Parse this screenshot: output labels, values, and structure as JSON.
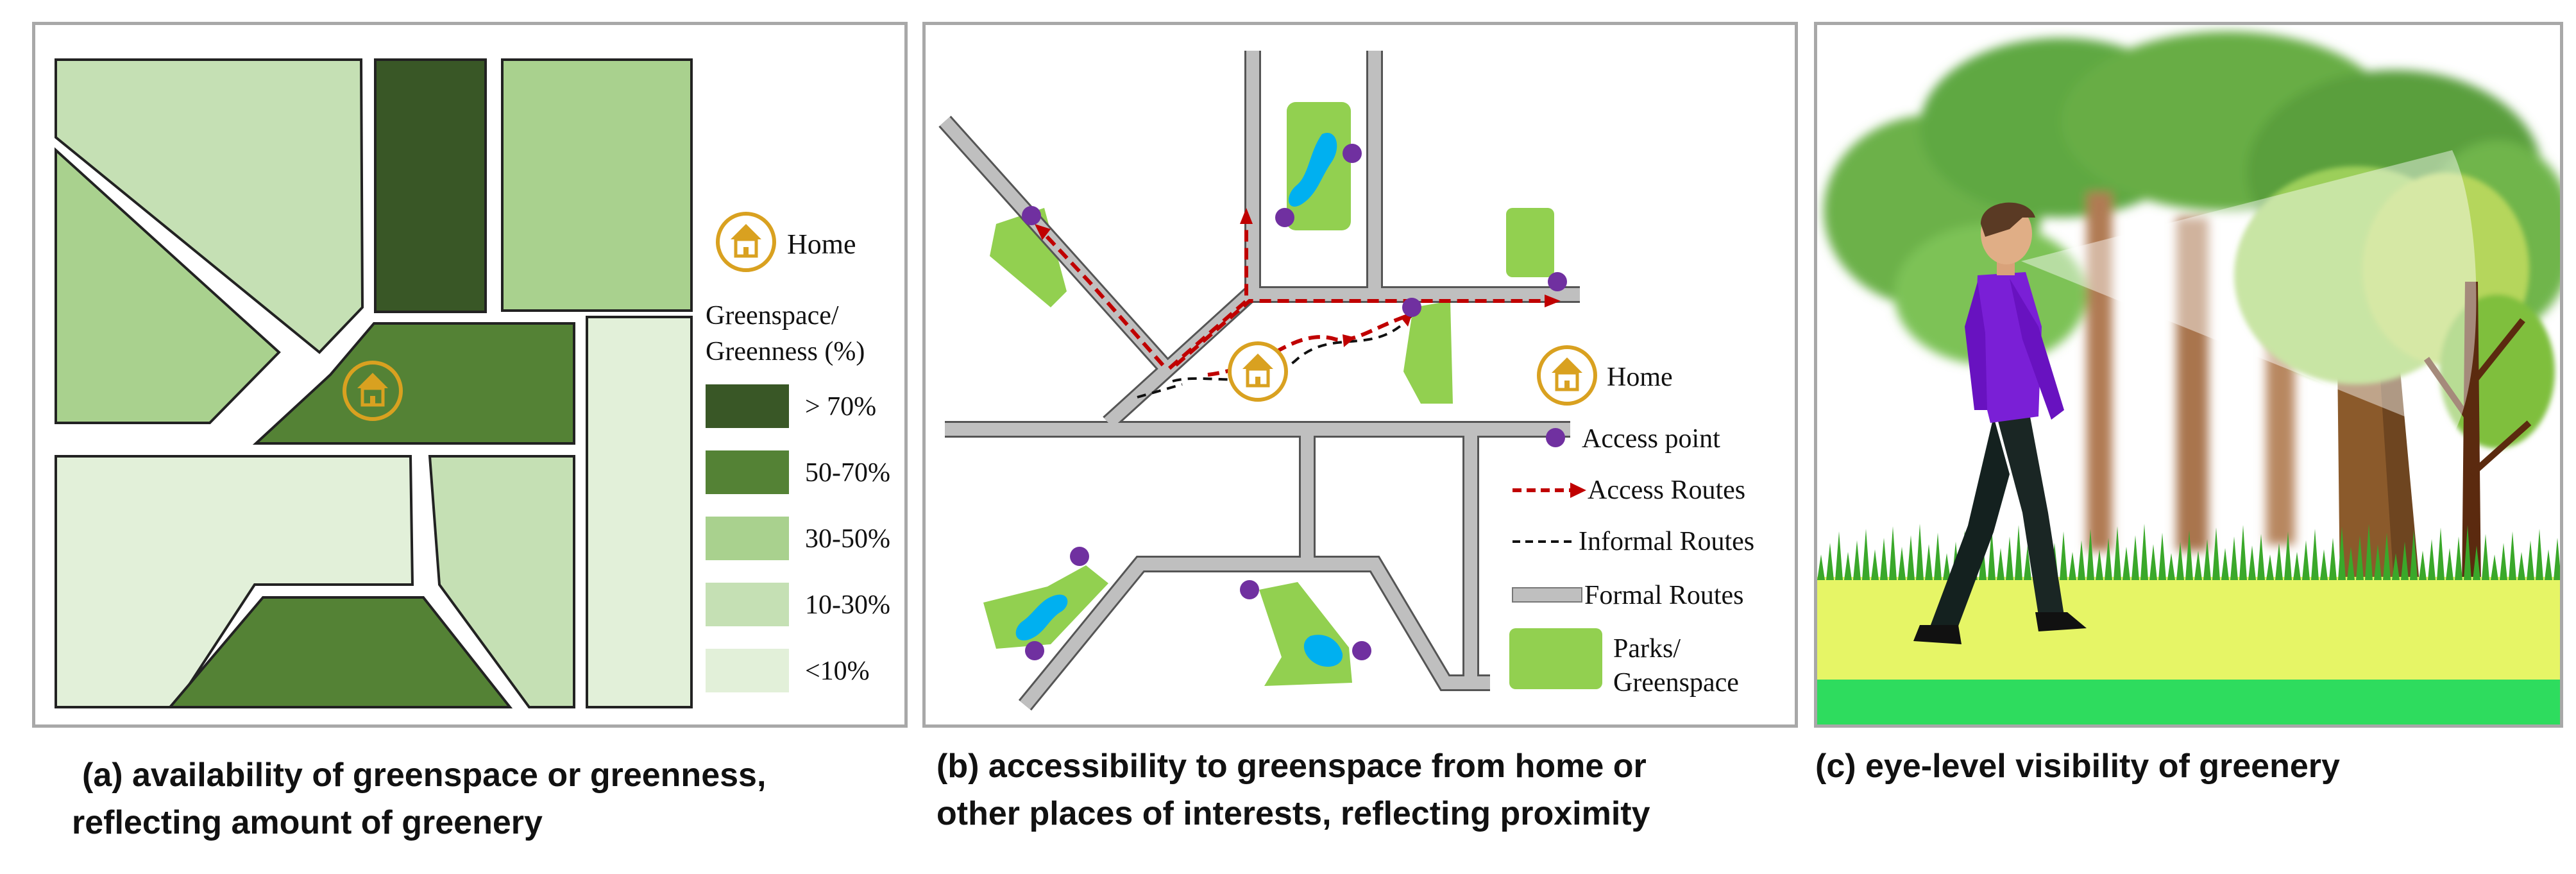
{
  "panel_a": {
    "legend": {
      "home_label": "Home",
      "title_line1": "Greenspace/",
      "title_line2": "Greenness (%)",
      "classes": [
        {
          "label": "> 70%",
          "color": "#395726"
        },
        {
          "label": "50-70%",
          "color": "#548235"
        },
        {
          "label": "30-50%",
          "color": "#a9d18e"
        },
        {
          "label": "10-30%",
          "color": "#c5e0b4"
        },
        {
          "label": "<10%",
          "color": "#e2f0d9"
        }
      ]
    },
    "caption_line1": "(a) availability of greenspace or greenness,",
    "caption_line2": "reflecting amount of greenery"
  },
  "panel_b": {
    "legend": {
      "home": "Home",
      "access_point": "Access point",
      "access_routes": "Access Routes",
      "informal_routes": "Informal Routes",
      "formal_routes": "Formal Routes",
      "parks_line1": "Parks/",
      "parks_line2": "Greenspace"
    },
    "colors": {
      "road": "#bfbfbf",
      "park": "#92d050",
      "water": "#00b0f0",
      "access_point": "#7030a0",
      "access_route": "#c00000",
      "home": "#d9a120"
    },
    "caption_line1": "(b) accessibility to greenspace from home or",
    "caption_line2": "other places of interests, reflecting proximity"
  },
  "panel_c": {
    "caption": "(c) eye-level visibility of greenery",
    "colors": {
      "grass": "#e6f566",
      "ground_strip": "#2edc5e",
      "shirt": "#7a1fd6"
    }
  }
}
